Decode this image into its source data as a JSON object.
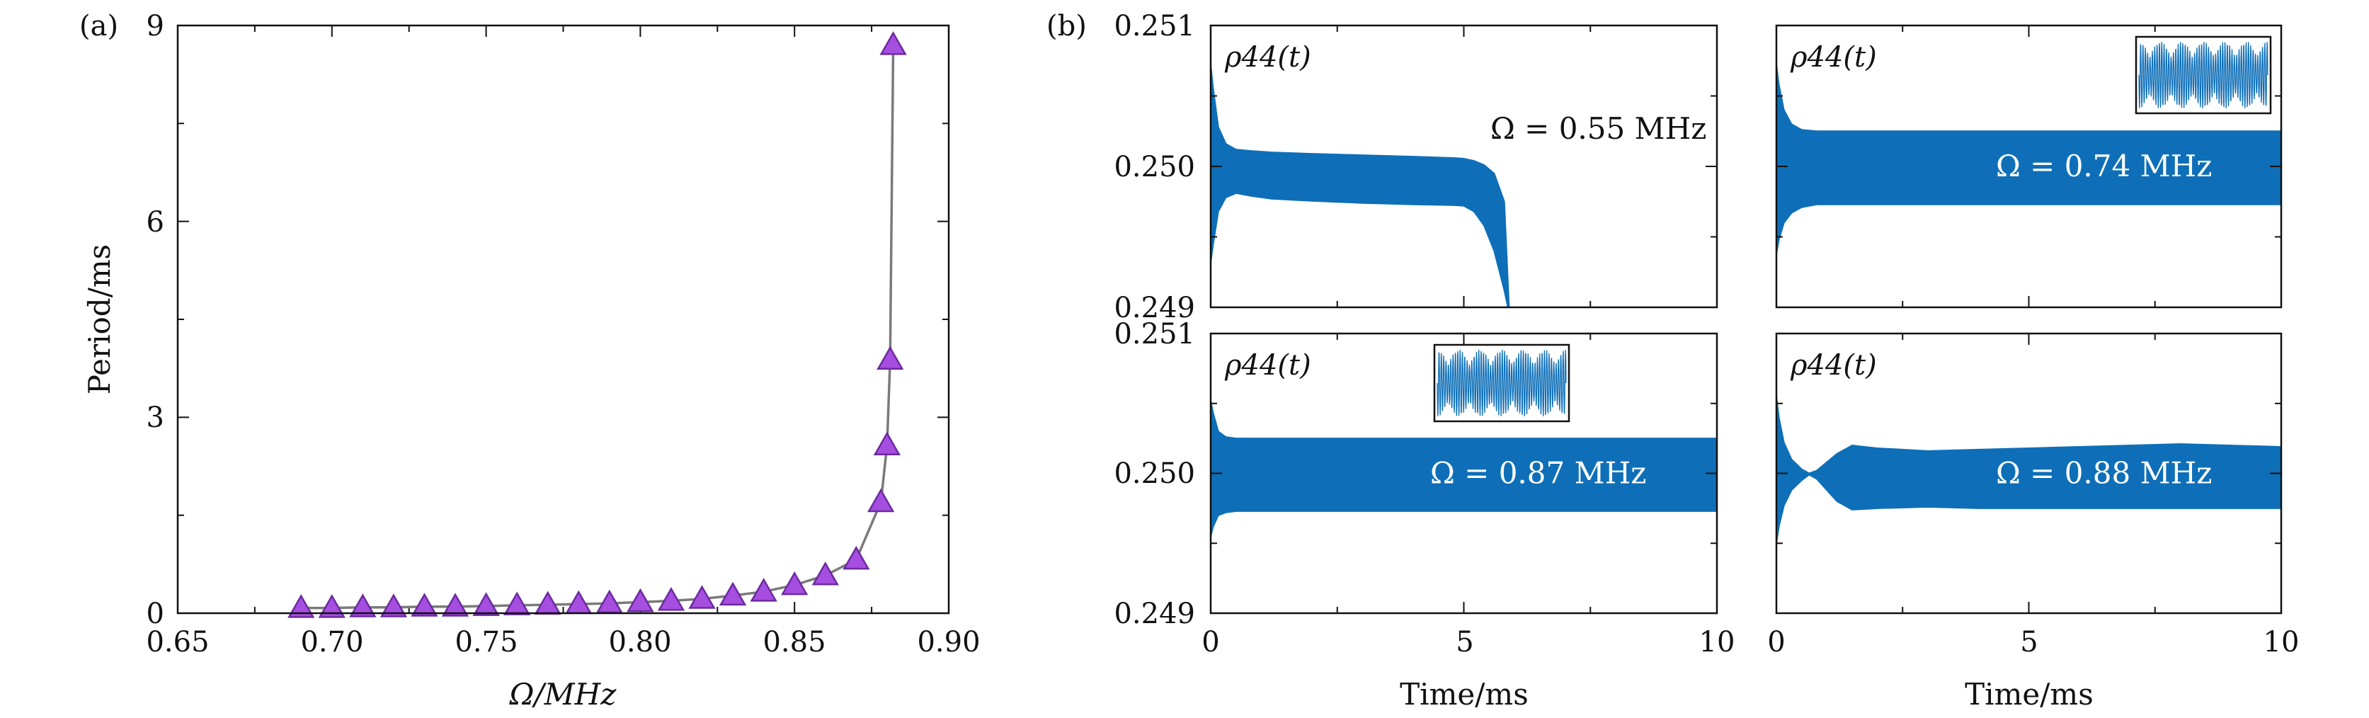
{
  "panel_a": {
    "label": "(a)",
    "xlabel": "Ω/MHz",
    "ylabel": "Period/ms",
    "xticks": [
      "0.65",
      "0.70",
      "0.75",
      "0.80",
      "0.85",
      "0.90"
    ],
    "yticks": [
      "0",
      "3",
      "6",
      "9"
    ]
  },
  "panel_b": {
    "label": "(b)",
    "xlabel": "Time/ms",
    "yticks": [
      "0.249",
      "0.250",
      "0.251"
    ],
    "xticks": [
      "0",
      "5",
      "10"
    ],
    "ylabel_inline": "ρ44(t)",
    "subplots": [
      {
        "omega": "Ω = 0.55 MHz"
      },
      {
        "omega": "Ω = 0.74 MHz"
      },
      {
        "omega": "Ω = 0.87 MHz"
      },
      {
        "omega": "Ω = 0.88 MHz"
      }
    ]
  },
  "colors": {
    "band": "#0e6fb8",
    "marker_fill": "#a64ee0",
    "marker_edge": "#6b2aa0",
    "line": "#7a7a7a",
    "axis": "#111111"
  },
  "chart_data": [
    {
      "type": "line",
      "xlim": [
        0.65,
        0.9
      ],
      "ylim": [
        0,
        9
      ],
      "marker": "triangle",
      "x": [
        0.69,
        0.7,
        0.71,
        0.72,
        0.73,
        0.74,
        0.75,
        0.76,
        0.77,
        0.78,
        0.79,
        0.8,
        0.81,
        0.82,
        0.83,
        0.84,
        0.85,
        0.86,
        0.87,
        0.878,
        0.88,
        0.881,
        0.882
      ],
      "y": [
        0.08,
        0.08,
        0.09,
        0.09,
        0.1,
        0.1,
        0.11,
        0.12,
        0.13,
        0.14,
        0.15,
        0.17,
        0.19,
        0.22,
        0.27,
        0.33,
        0.43,
        0.58,
        0.82,
        1.7,
        2.57,
        3.88,
        8.7
      ]
    },
    {
      "type": "area",
      "series_label": "ρ44(t)",
      "xlim": [
        0,
        10
      ],
      "ylim": [
        0.249,
        0.251
      ],
      "annotation": "Ω = 0.55 MHz",
      "envelope": {
        "t": [
          0,
          0.05,
          0.15,
          0.3,
          0.5,
          0.8,
          1.2,
          2,
          3,
          4,
          4.8,
          5.0,
          5.2,
          5.4,
          5.6,
          5.8,
          5.9
        ],
        "upper": [
          0.25072,
          0.25055,
          0.25028,
          0.25016,
          0.25012,
          0.25011,
          0.2501,
          0.25009,
          0.25008,
          0.25007,
          0.25006,
          0.250055,
          0.25004,
          0.25001,
          0.24995,
          0.24975,
          0.24895
        ],
        "lower": [
          0.24932,
          0.24945,
          0.24968,
          0.24978,
          0.24981,
          0.24979,
          0.24977,
          0.249755,
          0.24974,
          0.24973,
          0.249725,
          0.24972,
          0.24968,
          0.24958,
          0.2494,
          0.24912,
          0.24895
        ]
      }
    },
    {
      "type": "area",
      "series_label": "ρ44(t)",
      "xlim": [
        0,
        10
      ],
      "ylim": [
        0.249,
        0.251
      ],
      "annotation": "Ω = 0.74 MHz",
      "envelope": {
        "t": [
          0,
          0.05,
          0.15,
          0.3,
          0.5,
          0.8,
          1.2,
          2,
          4,
          6,
          8,
          10
        ],
        "upper": [
          0.25072,
          0.25058,
          0.2504,
          0.2503,
          0.25026,
          0.25025,
          0.25025,
          0.25025,
          0.25025,
          0.25025,
          0.25025,
          0.25025
        ],
        "lower": [
          0.24938,
          0.24948,
          0.2496,
          0.24967,
          0.24971,
          0.24973,
          0.24973,
          0.24973,
          0.24973,
          0.24973,
          0.24973,
          0.24973
        ]
      },
      "inset": true
    },
    {
      "type": "area",
      "series_label": "ρ44(t)",
      "xlim": [
        0,
        10
      ],
      "ylim": [
        0.249,
        0.251
      ],
      "annotation": "Ω = 0.87 MHz",
      "envelope": {
        "t": [
          0,
          0.05,
          0.15,
          0.3,
          0.5,
          1,
          2,
          4,
          6,
          8,
          10
        ],
        "upper": [
          0.25052,
          0.25043,
          0.2503,
          0.25026,
          0.25025,
          0.25025,
          0.25025,
          0.25025,
          0.25025,
          0.25025,
          0.25025
        ],
        "lower": [
          0.24955,
          0.24962,
          0.2497,
          0.24972,
          0.24973,
          0.24973,
          0.24973,
          0.24973,
          0.24973,
          0.24973,
          0.24973
        ]
      },
      "inset": true
    },
    {
      "type": "area",
      "series_label": "ρ44(t)",
      "xlim": [
        0,
        10
      ],
      "ylim": [
        0.249,
        0.251
      ],
      "annotation": "Ω = 0.88 MHz",
      "envelope": {
        "t": [
          0,
          0.05,
          0.15,
          0.3,
          0.5,
          0.65,
          0.8,
          1.0,
          1.2,
          1.5,
          2,
          3,
          4,
          5,
          6,
          7,
          8,
          9,
          10
        ],
        "upper": [
          0.25055,
          0.2504,
          0.25022,
          0.2501,
          0.25003,
          0.25,
          0.25002,
          0.25008,
          0.25014,
          0.2502,
          0.25018,
          0.25016,
          0.25017,
          0.25018,
          0.25019,
          0.2502,
          0.25021,
          0.2502,
          0.25019
        ],
        "lower": [
          0.2495,
          0.24962,
          0.24977,
          0.24988,
          0.24995,
          0.24999,
          0.24996,
          0.24988,
          0.2498,
          0.24974,
          0.24975,
          0.24976,
          0.24975,
          0.24975,
          0.24975,
          0.24975,
          0.24975,
          0.24975,
          0.24975
        ]
      }
    }
  ]
}
